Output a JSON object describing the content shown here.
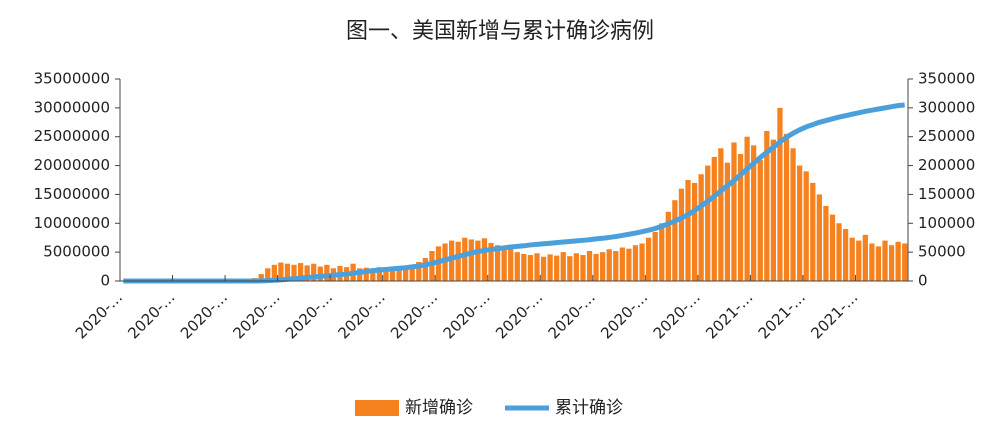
{
  "chart_data": {
    "type": "bar-line",
    "title": "图一、美国新增与累计确诊病例",
    "categories": [
      "2020-…",
      null,
      null,
      null,
      null,
      null,
      null,
      null,
      "2020-…",
      null,
      null,
      null,
      null,
      null,
      null,
      null,
      "2020-…",
      null,
      null,
      null,
      null,
      null,
      null,
      null,
      "2020-…",
      null,
      null,
      null,
      null,
      null,
      null,
      null,
      "2020-…",
      null,
      null,
      null,
      null,
      null,
      null,
      null,
      "2020-…",
      null,
      null,
      null,
      null,
      null,
      null,
      null,
      "2020-…",
      null,
      null,
      null,
      null,
      null,
      null,
      null,
      "2020-…",
      null,
      null,
      null,
      null,
      null,
      null,
      null,
      "2020-…",
      null,
      null,
      null,
      null,
      null,
      null,
      null,
      "2020-…",
      null,
      null,
      null,
      null,
      null,
      null,
      null,
      "2020-…",
      null,
      null,
      null,
      null,
      null,
      null,
      null,
      "2020-…",
      null,
      null,
      null,
      null,
      null,
      null,
      null,
      "2021-…",
      null,
      null,
      null,
      null,
      null,
      null,
      null,
      "2021-…",
      null,
      null,
      null,
      null,
      null,
      null,
      null,
      "2021-…",
      null,
      null,
      null,
      null,
      null,
      null,
      null
    ],
    "series": [
      {
        "name": "新增确诊",
        "type": "bar",
        "axis": "y2",
        "color": "#f5811f",
        "values": [
          0,
          0,
          0,
          0,
          0,
          0,
          0,
          0,
          0,
          0,
          0,
          0,
          0,
          0,
          0,
          0,
          0,
          0,
          0,
          1000,
          5000,
          12000,
          22000,
          28000,
          32000,
          30000,
          28000,
          31000,
          27000,
          30000,
          25000,
          28000,
          22000,
          26000,
          24000,
          30000,
          22000,
          23000,
          21000,
          24000,
          22000,
          25000,
          21000,
          26000,
          28000,
          33000,
          40000,
          52000,
          60000,
          65000,
          70000,
          68000,
          75000,
          72000,
          70000,
          74000,
          66000,
          62000,
          58000,
          55000,
          50000,
          47000,
          45000,
          48000,
          42000,
          46000,
          44000,
          50000,
          43000,
          48000,
          45000,
          52000,
          47000,
          50000,
          55000,
          52000,
          58000,
          56000,
          62000,
          65000,
          75000,
          85000,
          100000,
          120000,
          140000,
          160000,
          175000,
          170000,
          185000,
          200000,
          215000,
          230000,
          205000,
          240000,
          220000,
          250000,
          235000,
          210000,
          260000,
          245000,
          300000,
          255000,
          230000,
          200000,
          190000,
          170000,
          150000,
          130000,
          115000,
          100000,
          90000,
          75000,
          70000,
          80000,
          65000,
          60000,
          70000,
          62000,
          68000,
          65000
        ]
      },
      {
        "name": "累计确诊",
        "type": "line",
        "color": "#4ba0dc",
        "values": [
          0,
          0,
          0,
          0,
          0,
          0,
          0,
          0,
          0,
          0,
          0,
          0,
          0,
          0,
          0,
          0,
          0,
          0,
          0,
          0,
          0,
          20000,
          60000,
          120000,
          200000,
          300000,
          400000,
          500000,
          600000,
          700000,
          800000,
          900000,
          1000000,
          1100000,
          1200000,
          1350000,
          1500000,
          1650000,
          1800000,
          1900000,
          2000000,
          2100000,
          2200000,
          2300000,
          2450000,
          2600000,
          2800000,
          3050000,
          3350000,
          3650000,
          3950000,
          4250000,
          4550000,
          4850000,
          5100000,
          5300000,
          5450000,
          5600000,
          5750000,
          5900000,
          6000000,
          6100000,
          6250000,
          6350000,
          6450000,
          6550000,
          6650000,
          6750000,
          6850000,
          6950000,
          7050000,
          7150000,
          7300000,
          7400000,
          7550000,
          7700000,
          7900000,
          8100000,
          8300000,
          8550000,
          8800000,
          9100000,
          9500000,
          9900000,
          10400000,
          10900000,
          11500000,
          12200000,
          13000000,
          13800000,
          14700000,
          15600000,
          16500000,
          17400000,
          18400000,
          19400000,
          20400000,
          21400000,
          22300000,
          23200000,
          24100000,
          24900000,
          25600000,
          26200000,
          26700000,
          27100000,
          27500000,
          27800000,
          28100000,
          28400000,
          28650000,
          28900000,
          29150000,
          29400000,
          29600000,
          29800000,
          30000000,
          30200000,
          30400000,
          30500000
        ]
      }
    ],
    "ylim": [
      0,
      35000000
    ],
    "yticks": [
      0,
      5000000,
      10000000,
      15000000,
      20000000,
      25000000,
      30000000,
      35000000
    ],
    "y2lim": [
      0,
      350000
    ],
    "y2ticks": [
      0,
      50000,
      100000,
      150000,
      200000,
      250000,
      300000,
      350000
    ],
    "legend": "bottom"
  }
}
